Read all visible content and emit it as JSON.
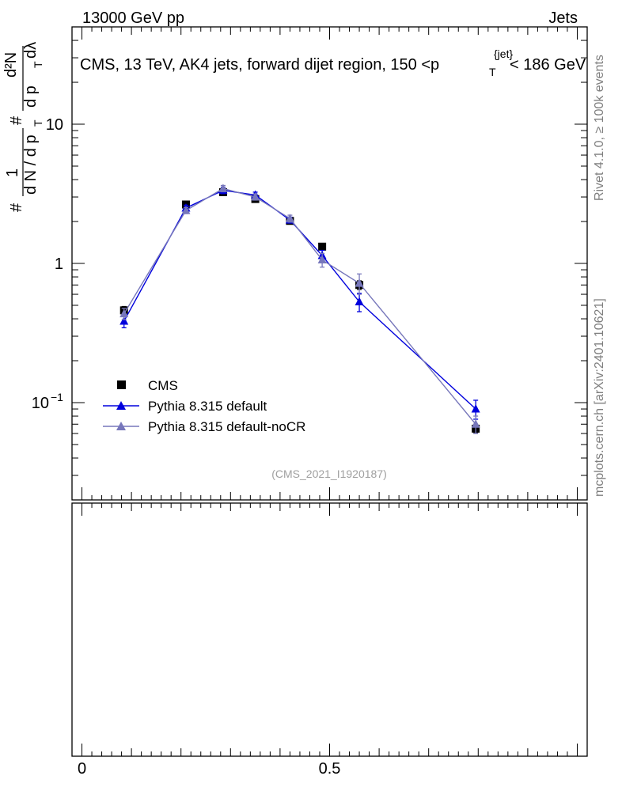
{
  "header": {
    "left": "13000 GeV pp",
    "right": "Jets"
  },
  "side_labels": {
    "version": "Rivet 4.1.0, ≥ 100k events",
    "site": "mcplots.cern.ch [arXiv:2401.10621]"
  },
  "analysis_id": "(CMS_2021_I1920187)",
  "chart_data": {
    "type": "line",
    "title": "CMS, 13 TeV, AK4 jets, forward dijet region, 150 <p_T^{jet}< 186 GeV",
    "title_main": "CMS, 13 TeV, AK4 jets, forward dijet region, 150 <p",
    "title_sup": "{jet}",
    "title_sub": "T",
    "title_end": "< 186 GeV",
    "ylabel": "# 1/(d N / d p_T #) d²N/(d p_T dλ)",
    "ylabel_parts": {
      "hash1": "#",
      "one": "1",
      "denom": "d N / d p",
      "denom_sub": "T",
      "hash2": "#",
      "num": "d²N",
      "num2": "d p",
      "num2_sub": "T",
      "dlambda": "dλ"
    },
    "yscale": "log",
    "ylim": [
      0.02,
      50
    ],
    "xlim": [
      -0.02,
      1.02
    ],
    "y_ticks": [
      {
        "value": 0.1,
        "base": "10",
        "exp": "−1"
      },
      {
        "value": 1,
        "base": "1",
        "exp": ""
      },
      {
        "value": 10,
        "base": "10",
        "exp": ""
      }
    ],
    "x_ticks": [
      {
        "value": 0,
        "label": "0"
      },
      {
        "value": 0.5,
        "label": "0.5"
      }
    ],
    "series": [
      {
        "name": "CMS",
        "color": "#000000",
        "marker": "square",
        "line": false,
        "x": [
          0.085,
          0.21,
          0.285,
          0.35,
          0.42,
          0.485,
          0.56,
          0.795
        ],
        "y": [
          0.46,
          2.65,
          3.25,
          2.9,
          2.02,
          1.32,
          0.7,
          0.065
        ],
        "err": [
          0.03,
          0.12,
          0.1,
          0.1,
          0.08,
          0.06,
          0.05,
          0.004
        ]
      },
      {
        "name": "Pythia 8.315 default",
        "color": "#0000dd",
        "marker": "triangle",
        "line": true,
        "x": [
          0.085,
          0.21,
          0.285,
          0.35,
          0.42,
          0.485,
          0.56,
          0.795
        ],
        "y": [
          0.385,
          2.5,
          3.35,
          3.1,
          2.05,
          1.14,
          0.53,
          0.09
        ],
        "err": [
          0.04,
          0.12,
          0.18,
          0.15,
          0.1,
          0.1,
          0.08,
          0.014
        ]
      },
      {
        "name": "Pythia 8.315 default-noCR",
        "color": "#7777bb",
        "marker": "triangle",
        "line": true,
        "x": [
          0.085,
          0.21,
          0.285,
          0.35,
          0.42,
          0.485,
          0.56,
          0.795
        ],
        "y": [
          0.435,
          2.4,
          3.45,
          3.0,
          2.1,
          1.06,
          0.72,
          0.07
        ],
        "err": [
          0.04,
          0.12,
          0.18,
          0.15,
          0.12,
          0.12,
          0.12,
          0.01
        ]
      }
    ]
  }
}
